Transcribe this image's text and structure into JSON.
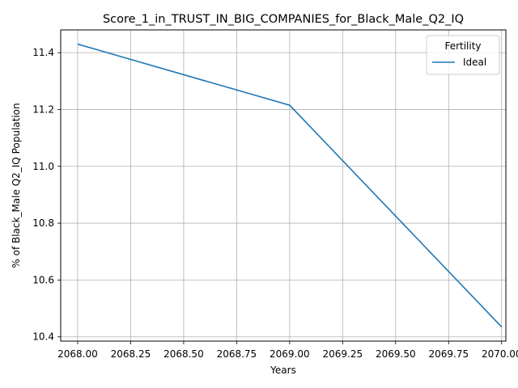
{
  "chart_data": {
    "type": "line",
    "title": "Score_1_in_TRUST_IN_BIG_COMPANIES_for_Black_Male_Q2_IQ",
    "xlabel": "Years",
    "ylabel": "% of Black_Male Q2_IQ Population",
    "xlim": [
      2067.92,
      2070.02
    ],
    "ylim": [
      10.385,
      11.48
    ],
    "xticks": [
      2068.0,
      2068.25,
      2068.5,
      2068.75,
      2069.0,
      2069.25,
      2069.5,
      2069.75,
      2070.0
    ],
    "xtick_labels": [
      "2068.00",
      "2068.25",
      "2068.50",
      "2068.75",
      "2069.00",
      "2069.25",
      "2069.50",
      "2069.75",
      "2070.00"
    ],
    "yticks": [
      10.4,
      10.6,
      10.8,
      11.0,
      11.2,
      11.4
    ],
    "ytick_labels": [
      "10.4",
      "10.6",
      "10.8",
      "11.0",
      "11.2",
      "11.4"
    ],
    "grid": true,
    "legend": {
      "title": "Fertility",
      "placement": "top-right"
    },
    "series": [
      {
        "name": "Ideal",
        "color": "#1f77b4",
        "x": [
          2068,
          2069,
          2070
        ],
        "y": [
          11.43,
          11.215,
          10.435
        ]
      }
    ]
  }
}
